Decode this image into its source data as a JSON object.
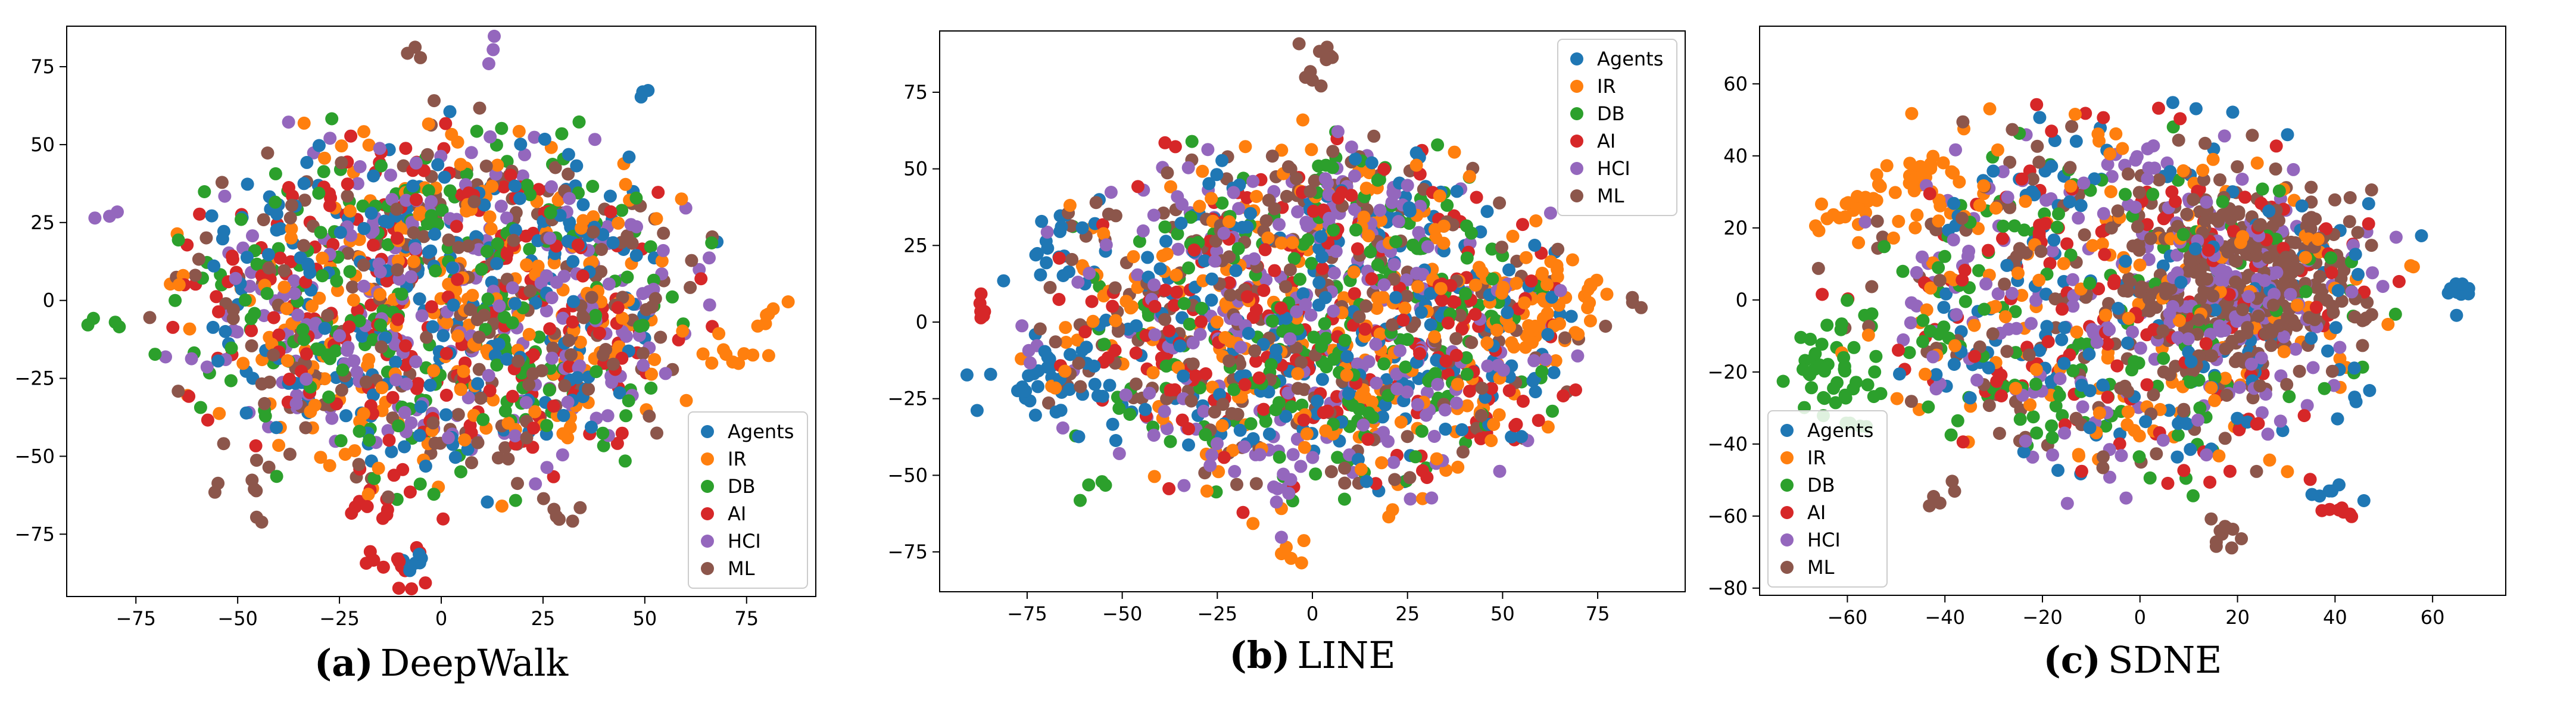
{
  "figure": {
    "panels_caption_font": "serif"
  },
  "colors": {
    "Agents": "#1f77b4",
    "IR": "#ff7f0e",
    "DB": "#2ca02c",
    "AI": "#d62728",
    "HCI": "#9467bd",
    "ML": "#8c564b"
  },
  "chart_data": [
    {
      "type": "scatter",
      "caption_letter": "(a)",
      "caption_name": "DeepWalk",
      "xlim": [
        -92,
        92
      ],
      "ylim": [
        -95,
        88
      ],
      "xticks": [
        -75,
        -50,
        -25,
        0,
        25,
        50,
        75
      ],
      "xtick_labels": [
        "−75",
        "−50",
        "−25",
        "0",
        "25",
        "50",
        "75"
      ],
      "yticks": [
        -75,
        -50,
        -25,
        0,
        25,
        50,
        75
      ],
      "ytick_labels": [
        "−75",
        "−50",
        "−25",
        "0",
        "25",
        "50",
        "75"
      ],
      "legend": [
        "Agents",
        "IR",
        "DB",
        "AI",
        "HCI",
        "ML"
      ],
      "legend_position": "bottom-right",
      "grid": false,
      "cloud": {
        "cx": 0,
        "cy": -2,
        "rx": 75,
        "ry": 70,
        "n_per_class": 230,
        "seed": 11
      },
      "clusters": [
        {
          "class": "AI",
          "x": -10,
          "y": -85,
          "r": 4,
          "n": 14
        },
        {
          "class": "Agents",
          "x": -7,
          "y": -83,
          "r": 3,
          "n": 6
        },
        {
          "class": "AI",
          "x": -18,
          "y": -68,
          "r": 4,
          "n": 8
        },
        {
          "class": "IR",
          "x": 72,
          "y": -20,
          "r": 4,
          "n": 8
        },
        {
          "class": "IR",
          "x": 80,
          "y": -5,
          "r": 3,
          "n": 6
        },
        {
          "class": "HCI",
          "x": 12,
          "y": 82,
          "r": 2,
          "n": 3
        },
        {
          "class": "ML",
          "x": -8,
          "y": 80,
          "r": 2,
          "n": 3
        },
        {
          "class": "HCI",
          "x": -83,
          "y": 27,
          "r": 2,
          "n": 3
        },
        {
          "class": "DB",
          "x": -82,
          "y": -7,
          "r": 3,
          "n": 4
        },
        {
          "class": "ML",
          "x": -48,
          "y": -60,
          "r": 5,
          "n": 10
        },
        {
          "class": "Agents",
          "x": 50,
          "y": 66,
          "r": 2,
          "n": 3
        },
        {
          "class": "ML",
          "x": 28,
          "y": -68,
          "r": 4,
          "n": 6
        }
      ]
    },
    {
      "type": "scatter",
      "caption_letter": "(b)",
      "caption_name": "LINE",
      "xlim": [
        -98,
        98
      ],
      "ylim": [
        -88,
        95
      ],
      "xticks": [
        -75,
        -50,
        -25,
        0,
        25,
        50,
        75
      ],
      "xtick_labels": [
        "−75",
        "−50",
        "−25",
        "0",
        "25",
        "50",
        "75"
      ],
      "yticks": [
        -75,
        -50,
        -25,
        0,
        25,
        50,
        75
      ],
      "ytick_labels": [
        "−75",
        "−50",
        "−25",
        "0",
        "25",
        "50",
        "75"
      ],
      "legend": [
        "Agents",
        "IR",
        "DB",
        "AI",
        "HCI",
        "ML"
      ],
      "legend_position": "top-right",
      "grid": false,
      "cloud": {
        "cx": 0,
        "cy": 0,
        "rx": 80,
        "ry": 70,
        "n_per_class": 230,
        "seed": 23
      },
      "clusters": [
        {
          "class": "IR",
          "x": 63,
          "y": 5,
          "r": 9,
          "n": 45
        },
        {
          "class": "IR",
          "x": 45,
          "y": -30,
          "r": 8,
          "n": 15
        },
        {
          "class": "Agents",
          "x": -68,
          "y": -20,
          "r": 8,
          "n": 35
        },
        {
          "class": "Agents",
          "x": -68,
          "y": 25,
          "r": 6,
          "n": 18
        },
        {
          "class": "ML",
          "x": 0,
          "y": 85,
          "r": 4,
          "n": 10
        },
        {
          "class": "AI",
          "x": -85,
          "y": 3,
          "r": 3,
          "n": 6
        },
        {
          "class": "HCI",
          "x": -12,
          "y": -52,
          "r": 6,
          "n": 10
        },
        {
          "class": "ML",
          "x": 85,
          "y": 6,
          "r": 2,
          "n": 3
        },
        {
          "class": "IR",
          "x": -8,
          "y": -75,
          "r": 3,
          "n": 5
        },
        {
          "class": "DB",
          "x": -58,
          "y": -55,
          "r": 3,
          "n": 4
        },
        {
          "class": "HCI",
          "x": 10,
          "y": 38,
          "r": 8,
          "n": 18
        }
      ]
    },
    {
      "type": "scatter",
      "caption_letter": "(c)",
      "caption_name": "SDNE",
      "xlim": [
        -78,
        75
      ],
      "ylim": [
        -82,
        76
      ],
      "xticks": [
        -60,
        -40,
        -20,
        0,
        20,
        40,
        60
      ],
      "xtick_labels": [
        "−60",
        "−40",
        "−20",
        "0",
        "20",
        "40",
        "60"
      ],
      "yticks": [
        -80,
        -60,
        -40,
        -20,
        0,
        20,
        40,
        60
      ],
      "ytick_labels": [
        "−80",
        "−60",
        "−40",
        "−20",
        "0",
        "20",
        "40",
        "60"
      ],
      "legend": [
        "Agents",
        "IR",
        "DB",
        "AI",
        "HCI",
        "ML"
      ],
      "legend_position": "bottom-left",
      "grid": false,
      "cloud": {
        "cx": -2,
        "cy": 0,
        "rx": 66,
        "ry": 60,
        "n_per_class": 160,
        "seed": 37
      },
      "clusters": [
        {
          "class": "ML",
          "x": 20,
          "y": 5,
          "r": 12,
          "n": 260
        },
        {
          "class": "HCI",
          "x": 18,
          "y": 2,
          "r": 11,
          "n": 90
        },
        {
          "class": "DB",
          "x": -62,
          "y": -18,
          "r": 6,
          "n": 35
        },
        {
          "class": "IR",
          "x": -58,
          "y": 25,
          "r": 5,
          "n": 25
        },
        {
          "class": "IR",
          "x": -45,
          "y": 35,
          "r": 5,
          "n": 25
        },
        {
          "class": "Agents",
          "x": 65,
          "y": 3,
          "r": 2,
          "n": 10
        },
        {
          "class": "ML",
          "x": 18,
          "y": -65,
          "r": 3,
          "n": 10
        },
        {
          "class": "AI",
          "x": 40,
          "y": -56,
          "r": 3,
          "n": 8
        },
        {
          "class": "Agents",
          "x": 38,
          "y": -55,
          "r": 3,
          "n": 6
        },
        {
          "class": "HCI",
          "x": 2,
          "y": 40,
          "r": 4,
          "n": 8
        },
        {
          "class": "DB",
          "x": -60,
          "y": -30,
          "r": 4,
          "n": 10
        },
        {
          "class": "ML",
          "x": -40,
          "y": -55,
          "r": 3,
          "n": 5
        }
      ]
    }
  ]
}
